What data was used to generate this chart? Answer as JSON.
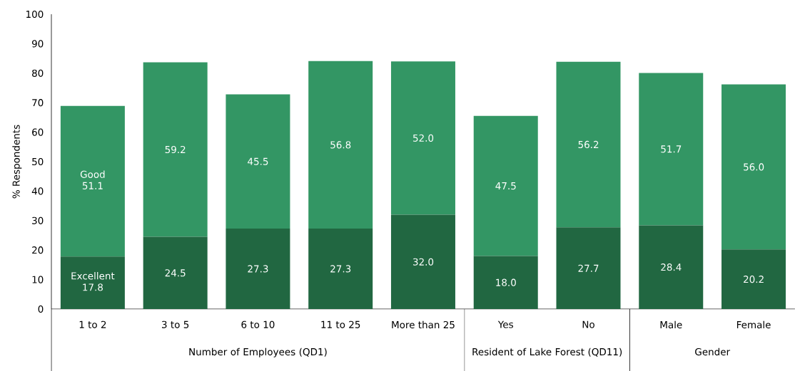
{
  "chart_data": {
    "type": "bar",
    "stacked": true,
    "ylabel": "% Respondents",
    "categories": [
      "1 to 2",
      "3 to 5",
      "6 to 10",
      "11 to 25",
      "More than 25",
      "Yes",
      "No",
      "Male",
      "Female"
    ],
    "series": [
      {
        "name": "Excellent",
        "color": "#216741",
        "values": [
          17.8,
          24.5,
          27.3,
          27.3,
          32.0,
          18.0,
          27.7,
          28.4,
          20.2
        ],
        "value_labels": [
          "17.8",
          "24.5",
          "27.3",
          "27.3",
          "32.0",
          "18.0",
          "27.7",
          "28.4",
          "20.2"
        ]
      },
      {
        "name": "Good",
        "color": "#339664",
        "values": [
          51.1,
          59.2,
          45.5,
          56.8,
          52.0,
          47.5,
          56.2,
          51.7,
          56.0
        ],
        "value_labels": [
          "51.1",
          "59.2",
          "45.5",
          "56.8",
          "52.0",
          "47.5",
          "56.2",
          "51.7",
          "56.0"
        ]
      }
    ],
    "ylim": [
      0,
      100
    ],
    "yticks": [
      0,
      10,
      20,
      30,
      40,
      50,
      60,
      70,
      80,
      90,
      100
    ],
    "annotations": [
      "Number of Employees (QD1)",
      "Resident of Lake Forest (QD11)",
      "Gender"
    ]
  }
}
